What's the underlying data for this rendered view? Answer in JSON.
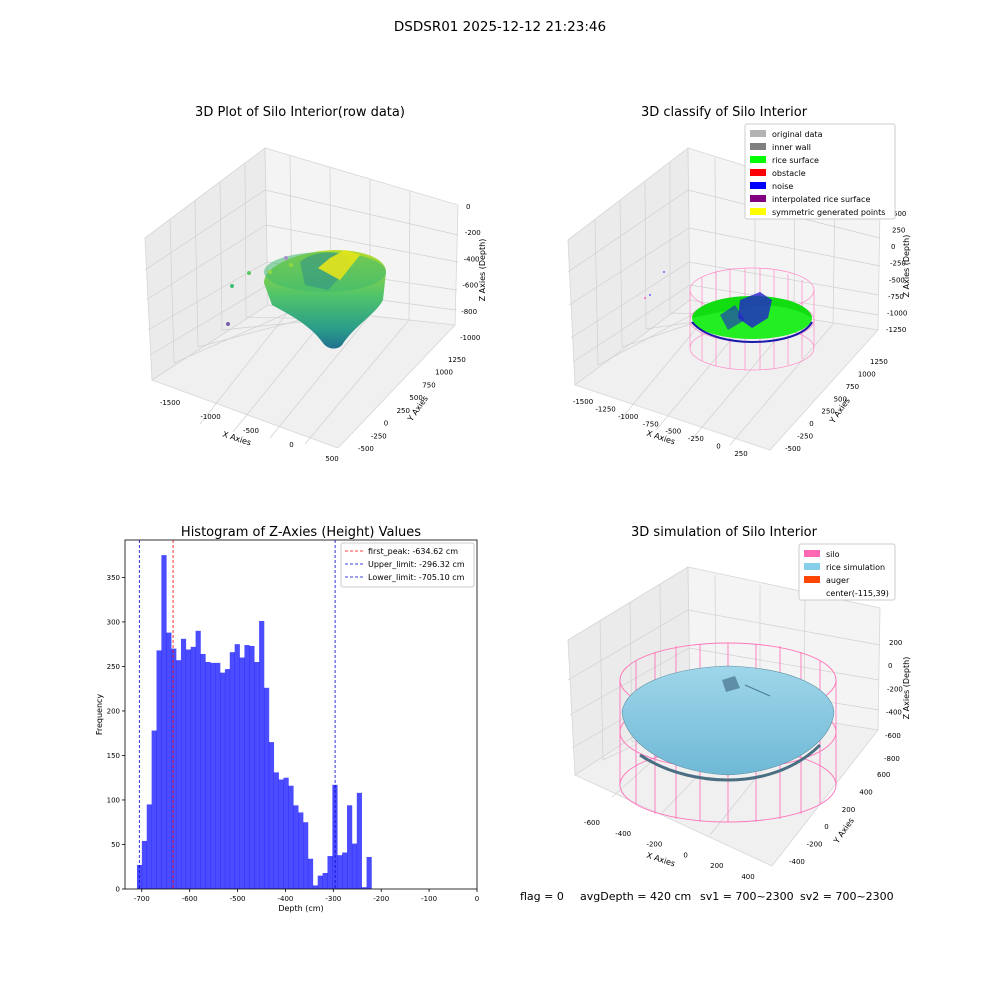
{
  "suptitle": "DSDSR01 2025-12-12 21:23:46",
  "panels": {
    "raw3d": {
      "title": "3D Plot of Silo Interior(row data)",
      "xlabel": "X Axies",
      "ylabel": "Y Axies",
      "zlabel": "Z Axies (Depth)",
      "xticks": [
        "-1500",
        "-1000",
        "-500",
        "0",
        "500"
      ],
      "yticks": [
        "-500",
        "-250",
        "0",
        "250",
        "500",
        "750",
        "1000",
        "1250"
      ],
      "zticks": [
        "0",
        "-200",
        "-400",
        "-600",
        "-800",
        "-1000"
      ]
    },
    "classify3d": {
      "title": "3D classify of Silo Interior",
      "xlabel": "X Axies",
      "ylabel": "Y Axies",
      "zlabel": "Z Axies (Depth)",
      "xticks": [
        "-1500",
        "-1250",
        "-1000",
        "-750",
        "-500",
        "-250",
        "0",
        "250"
      ],
      "yticks": [
        "-500",
        "-250",
        "0",
        "250",
        "500",
        "750",
        "1000",
        "1250"
      ],
      "zticks": [
        "500",
        "250",
        "0",
        "-250",
        "-500",
        "-750",
        "-1000",
        "-1250"
      ],
      "legend": [
        {
          "label": "original data",
          "color": "#b3b3b3"
        },
        {
          "label": "inner wall",
          "color": "#808080"
        },
        {
          "label": "rice surface",
          "color": "#00ff00"
        },
        {
          "label": "obstacle",
          "color": "#ff0000"
        },
        {
          "label": "noise",
          "color": "#0000ff"
        },
        {
          "label": "interpolated rice surface",
          "color": "#800080"
        },
        {
          "label": "symmetric generated points",
          "color": "#ffff00"
        }
      ]
    },
    "sim3d": {
      "title": "3D simulation of Silo Interior",
      "xlabel": "X Axies",
      "ylabel": "Y Axies",
      "zlabel": "Z Axies (Depth)",
      "xticks": [
        "-600",
        "-400",
        "-200",
        "0",
        "200",
        "400"
      ],
      "yticks": [
        "-400",
        "-200",
        "0",
        "200",
        "400",
        "600"
      ],
      "zticks": [
        "200",
        "0",
        "-200",
        "-400",
        "-600",
        "-800"
      ],
      "legend": [
        {
          "label": "silo",
          "color": "#ff69b4"
        },
        {
          "label": "rice simulation",
          "color": "#87ceeb"
        },
        {
          "label": "auger",
          "color": "#ff4500"
        },
        {
          "label": "center(-115,39)",
          "color": ""
        }
      ]
    }
  },
  "colors": {
    "hist_bar": "#0000ff",
    "first_peak": "#ff0000",
    "limits": "#0000cc",
    "grid": "#d9d9d9"
  },
  "status": {
    "flag": "flag = 0",
    "avg_depth": "avgDepth = 420 cm",
    "sv1": "sv1 = 700~2300",
    "sv2": "sv2 = 700~2300"
  },
  "chart_data": [
    {
      "type": "bar",
      "title": "Histogram of Z-Axies (Height) Values",
      "xlabel": "Depth (cm)",
      "ylabel": "Frequency",
      "xlim": [
        -735,
        0
      ],
      "ylim": [
        0,
        392
      ],
      "xticks": [
        -700,
        -600,
        -500,
        -400,
        -300,
        -200,
        -100,
        0
      ],
      "yticks": [
        0,
        50,
        100,
        150,
        200,
        250,
        300,
        350
      ],
      "bin_start": -710,
      "bin_width": 10.2,
      "values": [
        27,
        54,
        95,
        178,
        268,
        375,
        288,
        270,
        257,
        281,
        269,
        272,
        290,
        264,
        255,
        254,
        254,
        243,
        247,
        266,
        275,
        260,
        274,
        273,
        255,
        301,
        226,
        165,
        131,
        123,
        125,
        116,
        94,
        86,
        75,
        34,
        4,
        15,
        18,
        37,
        117,
        38,
        41,
        94,
        51,
        108,
        2,
        36
      ],
      "lines": [
        {
          "label": "first_peak: -634.62 cm",
          "x": -634.62,
          "color": "#ff0000"
        },
        {
          "label": "Upper_limit: -296.32 cm",
          "x": -296.32,
          "color": "#0000cc"
        },
        {
          "label": "Lower_limit: -705.10 cm",
          "x": -705.1,
          "color": "#0000cc"
        }
      ]
    }
  ]
}
